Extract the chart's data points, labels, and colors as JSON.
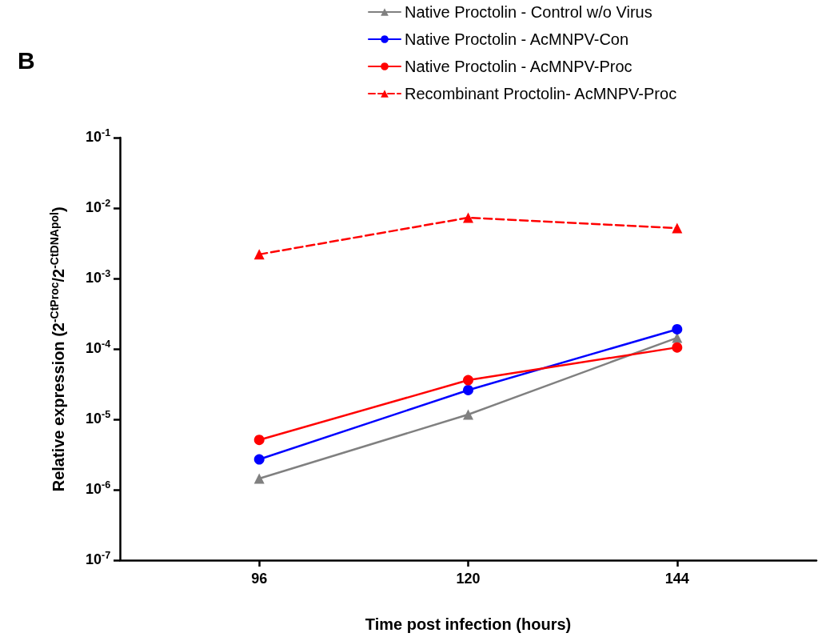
{
  "chart_data": {
    "type": "line",
    "annotations": [
      "B"
    ],
    "xlabel": "Time post infection (hours)",
    "ylabel": "Relative expression (2$^{-CtProc}$/2$^{-CtDNApol}$)",
    "x": [
      96,
      120,
      144
    ],
    "xlim": [
      80,
      160
    ],
    "xticks": [
      96,
      120,
      144
    ],
    "log": "y",
    "ylim": [
      1e-07,
      0.1
    ],
    "yticks": [
      {
        "value": 1e-07,
        "label": "10$^{-7}$"
      },
      {
        "value": 1e-06,
        "label": "10$^{-6}$"
      },
      {
        "value": 1e-05,
        "label": "10$^{-5}$"
      },
      {
        "value": 0.0001,
        "label": "10$^{-4}$"
      },
      {
        "value": 0.001,
        "label": "10$^{-3}$"
      },
      {
        "value": 0.01,
        "label": "10$^{-2}$"
      },
      {
        "value": 0.1,
        "label": "10$^{-1}$"
      }
    ],
    "grid": false,
    "legend": "top right",
    "series": [
      {
        "name": "Native Proctolin - Control w/o Virus",
        "color": "#808080",
        "marker": "triangle",
        "line_style": "solid",
        "values": [
          1.44e-06,
          1.17e-05,
          0.000144
        ]
      },
      {
        "name": "Native Proctolin - AcMNPV-Con",
        "color": "#0000ff",
        "marker": "circle",
        "line_style": "solid",
        "values": [
          2.7e-06,
          2.6e-05,
          0.00019
        ]
      },
      {
        "name": "Native Proctolin - AcMNPV-Proc",
        "color": "#ff0000",
        "marker": "circle",
        "line_style": "solid",
        "values": [
          5.1e-06,
          3.6e-05,
          0.000105
        ]
      },
      {
        "name": "Recombinant Proctolin- AcMNPV-Proc",
        "color": "#ff0000",
        "marker": "triangle",
        "line_style": "dashed",
        "values": [
          0.0022,
          0.0073,
          0.0052
        ]
      }
    ]
  }
}
